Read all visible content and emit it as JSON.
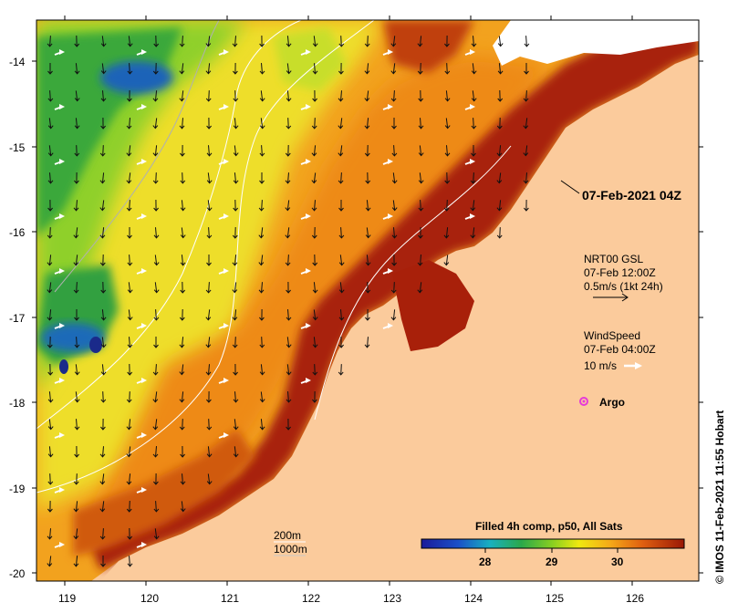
{
  "map": {
    "timestamp_label": "07-Feb-2021 04Z",
    "current_legend": {
      "title": "NRT00 GSL",
      "time": "07-Feb 12:00Z",
      "scale": "0.5m/s (1kt 24h)"
    },
    "wind_legend": {
      "title": "WindSpeed",
      "time": "07-Feb 04:00Z",
      "scale": "10 m/s"
    },
    "argo_label": "Argo",
    "contours": {
      "label_200m": "200m",
      "label_1000m": "1000m"
    },
    "colorbar": {
      "title": "Filled 4h comp, p50, All Sats",
      "ticks": [
        "28",
        "29",
        "30"
      ]
    },
    "x_ticks": [
      "119",
      "120",
      "121",
      "122",
      "123",
      "124",
      "125",
      "126"
    ],
    "y_ticks": [
      "-14",
      "-15",
      "-16",
      "-17",
      "-18",
      "-19",
      "-20"
    ],
    "credit": "© IMOS 11-Feb-2021 11:55 Hobart",
    "colors": {
      "land": "#fbcb9c",
      "warm": "#9a1a06",
      "cool": "#2a8a2a",
      "cold": "#1c58b4",
      "argo": "#e63ad8"
    }
  }
}
